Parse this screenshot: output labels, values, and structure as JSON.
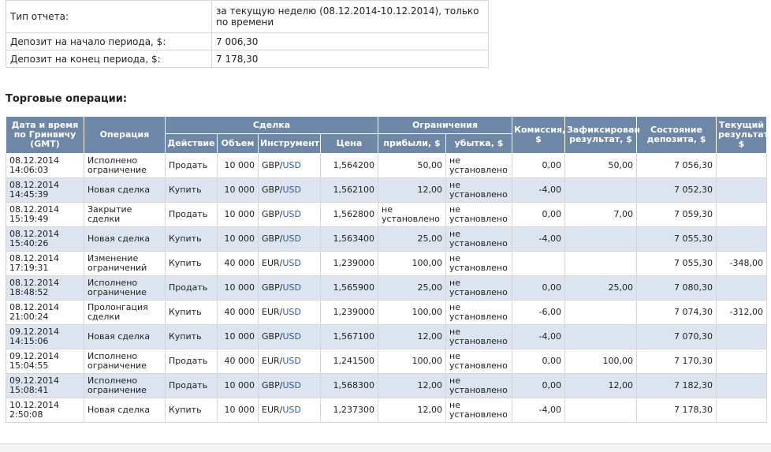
{
  "summary": [
    {
      "label": "Тип отчета:",
      "value": "за текущую неделю (08.12.2014-10.12.2014), только по времени"
    },
    {
      "label": "Депозит на начало периода, $:",
      "value": "7 006,30"
    },
    {
      "label": "Депозит на конец периода, $:",
      "value": "7 178,30"
    }
  ],
  "section_title": "Торговые операции:",
  "headers": {
    "date": "Дата и время по Гринвичу (GMT)",
    "operation": "Операция",
    "deal": "Сделка",
    "limits": "Ограничения",
    "commission": "Комиссия, $",
    "fixed_result": "Зафиксирован результат, $",
    "deposit_state": "Состояние депозита, $",
    "current_result": "Текущий результат, $",
    "action": "Действие",
    "volume": "Объем",
    "instrument": "Инструмент",
    "price": "Цена",
    "profit": "прибыли, $",
    "loss": "убытка, $"
  },
  "rows": [
    {
      "date": "08.12.2014",
      "time": "14:06:03",
      "op": "Исполнено ограничение",
      "action": "Продать",
      "volume": "10 000",
      "inst_base": "GBP",
      "inst_quote": "USD",
      "price": "1,564200",
      "profit": "50,00",
      "loss": "не установлено",
      "commission": "0,00",
      "fixed": "50,00",
      "deposit": "7 056,30",
      "current": ""
    },
    {
      "date": "08.12.2014",
      "time": "14:45:39",
      "op": "Новая сделка",
      "action": "Купить",
      "volume": "10 000",
      "inst_base": "GBP",
      "inst_quote": "USD",
      "price": "1,562100",
      "profit": "12,00",
      "loss": "не установлено",
      "commission": "-4,00",
      "fixed": "",
      "deposit": "7 052,30",
      "current": ""
    },
    {
      "date": "08.12.2014",
      "time": "15:19:49",
      "op": "Закрытие сделки",
      "action": "Продать",
      "volume": "10 000",
      "inst_base": "GBP",
      "inst_quote": "USD",
      "price": "1,562800",
      "profit": "не установлено",
      "loss": "не установлено",
      "commission": "0,00",
      "fixed": "7,00",
      "deposit": "7 059,30",
      "current": ""
    },
    {
      "date": "08.12.2014",
      "time": "15:40:26",
      "op": "Новая сделка",
      "action": "Купить",
      "volume": "10 000",
      "inst_base": "GBP",
      "inst_quote": "USD",
      "price": "1,563400",
      "profit": "25,00",
      "loss": "не установлено",
      "commission": "-4,00",
      "fixed": "",
      "deposit": "7 055,30",
      "current": ""
    },
    {
      "date": "08.12.2014",
      "time": "17:19:31",
      "op": "Изменение ограничений",
      "action": "Купить",
      "volume": "40 000",
      "inst_base": "EUR",
      "inst_quote": "USD",
      "price": "1,239000",
      "profit": "100,00",
      "loss": "не установлено",
      "commission": "",
      "fixed": "",
      "deposit": "7 055,30",
      "current": "-348,00"
    },
    {
      "date": "08.12.2014",
      "time": "18:48:52",
      "op": "Исполнено ограничение",
      "action": "Продать",
      "volume": "10 000",
      "inst_base": "GBP",
      "inst_quote": "USD",
      "price": "1,565900",
      "profit": "25,00",
      "loss": "не установлено",
      "commission": "0,00",
      "fixed": "25,00",
      "deposit": "7 080,30",
      "current": ""
    },
    {
      "date": "08.12.2014",
      "time": "21:00:24",
      "op": "Пролонгация сделки",
      "action": "Купить",
      "volume": "40 000",
      "inst_base": "EUR",
      "inst_quote": "USD",
      "price": "1,239000",
      "profit": "100,00",
      "loss": "не установлено",
      "commission": "-6,00",
      "fixed": "",
      "deposit": "7 074,30",
      "current": "-312,00"
    },
    {
      "date": "09.12.2014",
      "time": "14:15:06",
      "op": "Новая сделка",
      "action": "Купить",
      "volume": "10 000",
      "inst_base": "GBP",
      "inst_quote": "USD",
      "price": "1,567100",
      "profit": "12,00",
      "loss": "не установлено",
      "commission": "-4,00",
      "fixed": "",
      "deposit": "7 070,30",
      "current": ""
    },
    {
      "date": "09.12.2014",
      "time": "15:04:55",
      "op": "Исполнено ограничение",
      "action": "Продать",
      "volume": "40 000",
      "inst_base": "EUR",
      "inst_quote": "USD",
      "price": "1,241500",
      "profit": "100,00",
      "loss": "не установлено",
      "commission": "0,00",
      "fixed": "100,00",
      "deposit": "7 170,30",
      "current": ""
    },
    {
      "date": "09.12.2014",
      "time": "15:08:41",
      "op": "Исполнено ограничение",
      "action": "Продать",
      "volume": "10 000",
      "inst_base": "GBP",
      "inst_quote": "USD",
      "price": "1,568300",
      "profit": "12,00",
      "loss": "не установлено",
      "commission": "0,00",
      "fixed": "12,00",
      "deposit": "7 182,30",
      "current": ""
    },
    {
      "date": "10.12.2014",
      "time": "2:50:08",
      "op": "Новая сделка",
      "action": "Купить",
      "volume": "10 000",
      "inst_base": "EUR",
      "inst_quote": "USD",
      "price": "1,237300",
      "profit": "12,00",
      "loss": "не установлено",
      "commission": "-4,00",
      "fixed": "",
      "deposit": "7 178,30",
      "current": ""
    }
  ]
}
